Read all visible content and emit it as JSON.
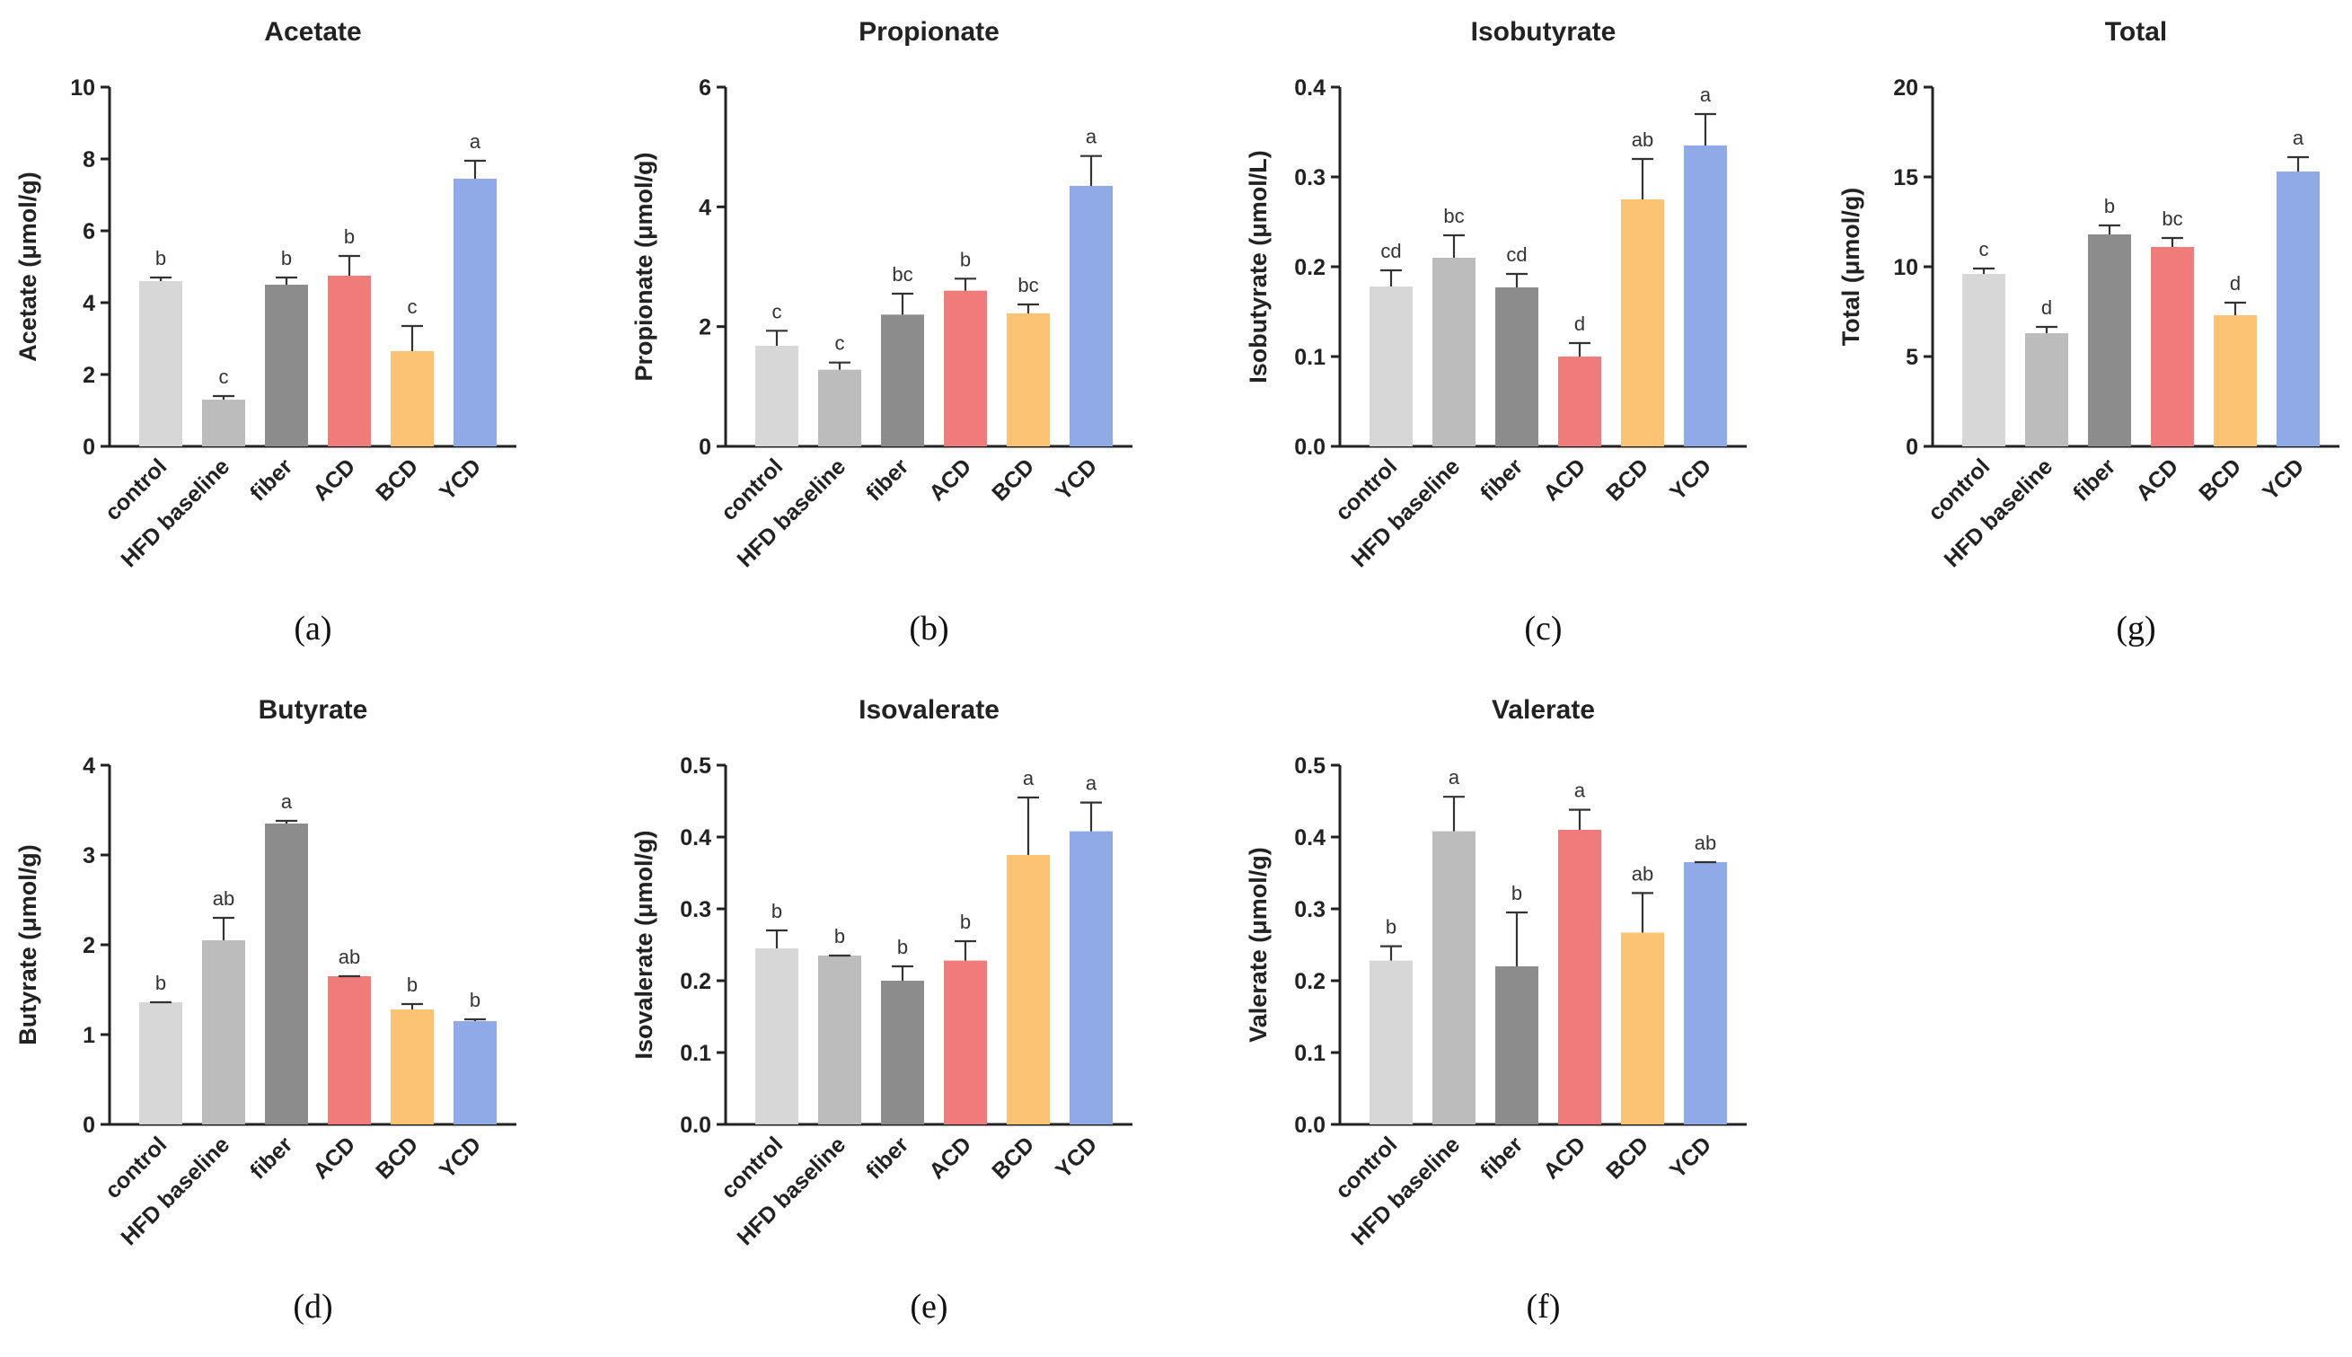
{
  "chart_data": [
    {
      "panel": "(a)",
      "type": "bar",
      "title": "Acetate",
      "ylabel": "Acetate (μmol/g)",
      "ylim": [
        0,
        10
      ],
      "yticks": [
        "0",
        "2",
        "4",
        "6",
        "8",
        "10"
      ],
      "categories": [
        "control",
        "HFD baseline",
        "fiber",
        "ACD",
        "BCD",
        "YCD"
      ],
      "values": [
        4.6,
        1.3,
        4.5,
        4.75,
        2.65,
        7.45
      ],
      "errors": [
        0.1,
        0.1,
        0.2,
        0.55,
        0.7,
        0.5
      ],
      "significance": [
        "b",
        "c",
        "b",
        "b",
        "c",
        "a"
      ]
    },
    {
      "panel": "(b)",
      "type": "bar",
      "title": "Propionate",
      "ylabel": "Propionate (μmol/g)",
      "ylim": [
        0,
        6
      ],
      "yticks": [
        "0",
        "2",
        "4",
        "6"
      ],
      "categories": [
        "control",
        "HFD baseline",
        "fiber",
        "ACD",
        "BCD",
        "YCD"
      ],
      "values": [
        1.68,
        1.28,
        2.2,
        2.6,
        2.22,
        4.35
      ],
      "errors": [
        0.25,
        0.12,
        0.35,
        0.2,
        0.15,
        0.5
      ],
      "significance": [
        "c",
        "c",
        "bc",
        "b",
        "bc",
        "a"
      ]
    },
    {
      "panel": "(c)",
      "type": "bar",
      "title": "Isobutyrate",
      "ylabel": "Isobutyrate (μmol/L)",
      "ylim": [
        0,
        0.4
      ],
      "yticks": [
        "0.0",
        "0.1",
        "0.2",
        "0.3",
        "0.4"
      ],
      "categories": [
        "control",
        "HFD baseline",
        "fiber",
        "ACD",
        "BCD",
        "YCD"
      ],
      "values": [
        0.178,
        0.21,
        0.177,
        0.1,
        0.275,
        0.335
      ],
      "errors": [
        0.018,
        0.025,
        0.015,
        0.015,
        0.045,
        0.035
      ],
      "significance": [
        "cd",
        "bc",
        "cd",
        "d",
        "ab",
        "a"
      ]
    },
    {
      "panel": "(g)",
      "type": "bar",
      "title": "Total",
      "ylabel": "Total (μmol/g)",
      "ylim": [
        0,
        20
      ],
      "yticks": [
        "0",
        "5",
        "10",
        "15",
        "20"
      ],
      "categories": [
        "control",
        "HFD baseline",
        "fiber",
        "ACD",
        "BCD",
        "YCD"
      ],
      "values": [
        9.6,
        6.3,
        11.8,
        11.1,
        7.3,
        15.3
      ],
      "errors": [
        0.3,
        0.35,
        0.5,
        0.5,
        0.7,
        0.8
      ],
      "significance": [
        "c",
        "d",
        "b",
        "bc",
        "d",
        "a"
      ]
    },
    {
      "panel": "(d)",
      "type": "bar",
      "title": "Butyrate",
      "ylabel": "Butyrate (μmol/g)",
      "ylim": [
        0,
        4
      ],
      "yticks": [
        "0",
        "1",
        "2",
        "3",
        "4"
      ],
      "categories": [
        "control",
        "HFD baseline",
        "fiber",
        "ACD",
        "BCD",
        "YCD"
      ],
      "values": [
        1.36,
        2.05,
        3.35,
        1.65,
        1.28,
        1.15
      ],
      "errors": [
        0.0,
        0.25,
        0.03,
        0.0,
        0.06,
        0.02
      ],
      "significance": [
        "b",
        "ab",
        "a",
        "ab",
        "b",
        "b"
      ]
    },
    {
      "panel": "(e)",
      "type": "bar",
      "title": "Isovalerate",
      "ylabel": "Isovalerate (μmol/g)",
      "ylim": [
        0,
        0.5
      ],
      "yticks": [
        "0.0",
        "0.1",
        "0.2",
        "0.3",
        "0.4",
        "0.5"
      ],
      "categories": [
        "control",
        "HFD baseline",
        "fiber",
        "ACD",
        "BCD",
        "YCD"
      ],
      "values": [
        0.245,
        0.235,
        0.2,
        0.228,
        0.375,
        0.408
      ],
      "errors": [
        0.025,
        0.0,
        0.02,
        0.027,
        0.08,
        0.04
      ],
      "significance": [
        "b",
        "b",
        "b",
        "b",
        "a",
        "a"
      ]
    },
    {
      "panel": "(f)",
      "type": "bar",
      "title": "Valerate",
      "ylabel": "Valerate (μmol/g)",
      "ylim": [
        0,
        0.5
      ],
      "yticks": [
        "0.0",
        "0.1",
        "0.2",
        "0.3",
        "0.4",
        "0.5"
      ],
      "categories": [
        "control",
        "HFD baseline",
        "fiber",
        "ACD",
        "BCD",
        "YCD"
      ],
      "values": [
        0.228,
        0.408,
        0.22,
        0.41,
        0.267,
        0.365
      ],
      "errors": [
        0.02,
        0.048,
        0.075,
        0.028,
        0.055,
        0.0
      ],
      "significance": [
        "b",
        "a",
        "b",
        "a",
        "ab",
        "ab"
      ]
    }
  ],
  "colors": {
    "control": "#d7d7d7",
    "HFD baseline": "#bcbcbc",
    "fiber": "#8c8c8c",
    "ACD": "#f07b7b",
    "BCD": "#fcc375",
    "YCD": "#8faae6"
  }
}
